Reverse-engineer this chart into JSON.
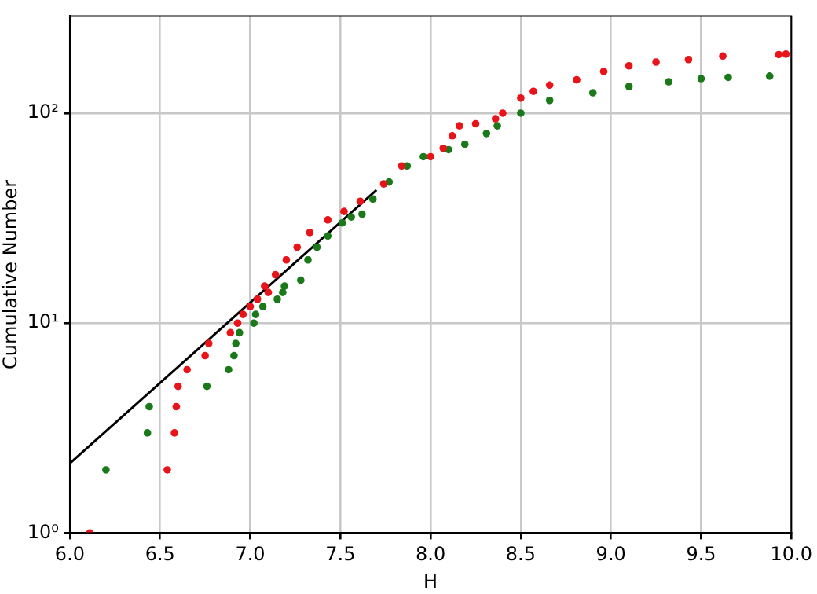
{
  "chart_data": {
    "type": "scatter",
    "xlabel": "H",
    "ylabel": "Cumulative Number",
    "log": "y",
    "grid": true,
    "legend": false,
    "marker": "circle",
    "xlim": [
      6,
      10
    ],
    "ylim": [
      1,
      290
    ],
    "xticks": [
      {
        "value": 6,
        "label": "6.0"
      },
      {
        "value": 6.5,
        "label": "6.5"
      },
      {
        "value": 7,
        "label": "7.0"
      },
      {
        "value": 7.5,
        "label": "7.5"
      },
      {
        "value": 8,
        "label": "8.0"
      },
      {
        "value": 8.5,
        "label": "8.5"
      },
      {
        "value": 9,
        "label": "9.0"
      },
      {
        "value": 9.5,
        "label": "9.5"
      },
      {
        "value": 10,
        "label": "10.0"
      }
    ],
    "yticks": [
      {
        "value": 1,
        "label": "10⁰"
      },
      {
        "value": 10,
        "label": "10¹"
      },
      {
        "value": 100,
        "label": "10²"
      }
    ],
    "series": [
      {
        "color": "#e8141a",
        "x": [
          6.11,
          6.54,
          6.58,
          6.59,
          6.6,
          6.65,
          6.75,
          6.77,
          6.89,
          6.93,
          6.96,
          7.0,
          7.04,
          7.08,
          7.1,
          7.14,
          7.2,
          7.26,
          7.33,
          7.43,
          7.52,
          7.61,
          7.74,
          7.84,
          8.0,
          8.07,
          8.12,
          8.16,
          8.25,
          8.36,
          8.4,
          8.5,
          8.57,
          8.66,
          8.81,
          8.96,
          9.1,
          9.25,
          9.43,
          9.62,
          9.93,
          9.97
        ],
        "values": [
          1,
          2,
          3,
          4,
          5,
          6,
          7,
          8,
          9,
          10,
          11,
          12,
          13,
          15,
          14,
          17,
          20,
          23,
          27,
          31,
          34,
          38,
          46,
          56,
          62,
          68,
          78,
          87,
          89,
          94,
          100,
          118,
          127,
          136,
          144,
          158,
          168,
          175,
          180,
          187,
          190,
          191
        ]
      },
      {
        "color": "#1a7a1a",
        "x": [
          6.2,
          6.43,
          6.44,
          6.76,
          6.88,
          6.91,
          6.92,
          6.94,
          7.02,
          7.03,
          7.07,
          7.15,
          7.18,
          7.19,
          7.28,
          7.32,
          7.37,
          7.43,
          7.51,
          7.56,
          7.62,
          7.68,
          7.77,
          7.87,
          7.96,
          8.1,
          8.19,
          8.31,
          8.37,
          8.5,
          8.66,
          8.9,
          9.1,
          9.32,
          9.5,
          9.65,
          9.88
        ],
        "values": [
          2,
          3,
          4,
          5,
          6,
          7,
          8,
          9,
          10,
          11,
          12,
          13,
          14,
          15,
          16,
          20,
          23,
          26,
          30,
          32,
          33,
          39,
          47,
          56,
          62,
          67,
          71,
          80,
          87,
          100,
          115,
          125,
          134,
          141,
          146,
          148,
          150
        ]
      },
      {
        "type": "line",
        "color": "#000000",
        "marker": "none",
        "x": [
          6.0,
          7.7
        ],
        "values": [
          2.15,
          43
        ]
      }
    ]
  }
}
